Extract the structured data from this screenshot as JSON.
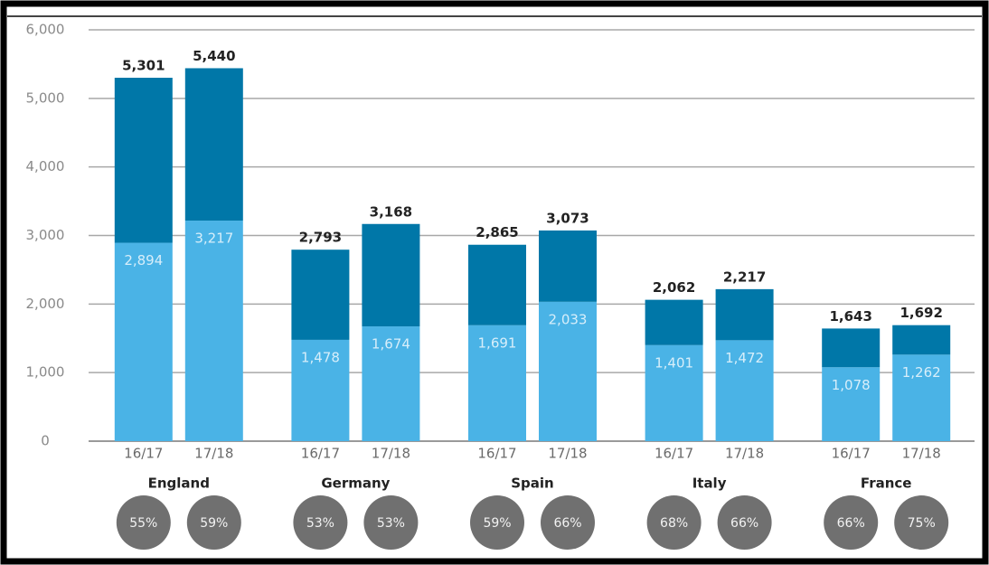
{
  "chart_data": {
    "type": "stacked_bar",
    "groups": [
      "England",
      "Germany",
      "Spain",
      "Italy",
      "France"
    ],
    "categories": [
      "16/17",
      "17/18",
      "16/17",
      "17/18",
      "16/17",
      "17/18",
      "16/17",
      "17/18",
      "16/17",
      "17/18"
    ],
    "series": [
      {
        "color": "#4ab3e6",
        "values": [
          2894,
          3217,
          1478,
          1674,
          1691,
          2033,
          1401,
          1472,
          1078,
          1262
        ],
        "value_labels": [
          "2,894",
          "3,217",
          "1,478",
          "1,674",
          "1,691",
          "2,033",
          "1,401",
          "1,472",
          "1,078",
          "1,262"
        ]
      },
      {
        "color": "#0077a8",
        "values": [
          2407,
          2223,
          1315,
          1494,
          1174,
          1040,
          661,
          745,
          565,
          430
        ]
      }
    ],
    "totals": {
      "values": [
        5301,
        5440,
        2793,
        3168,
        2865,
        3073,
        2062,
        2217,
        1643,
        1692
      ],
      "value_labels": [
        "5,301",
        "5,440",
        "2,793",
        "3,168",
        "2,865",
        "3,073",
        "2,062",
        "2,217",
        "1,643",
        "1,692"
      ]
    },
    "shares": {
      "color": "#707070",
      "values": [
        55,
        59,
        53,
        53,
        59,
        66,
        68,
        66,
        66,
        75
      ],
      "value_labels": [
        "55%",
        "59%",
        "53%",
        "53%",
        "59%",
        "66%",
        "68%",
        "66%",
        "66%",
        "75%"
      ]
    },
    "ylim": [
      0,
      6000
    ],
    "yticks": [
      0,
      {
        "value": 1000,
        "label": "1,000"
      },
      {
        "value": 2000,
        "label": "2,000"
      },
      {
        "value": 3000,
        "label": "3,000"
      },
      {
        "value": 4000,
        "label": "4,000"
      },
      {
        "value": 5000,
        "label": "5,000"
      },
      {
        "value": 6000,
        "label": "6,000"
      }
    ],
    "grid": true
  }
}
